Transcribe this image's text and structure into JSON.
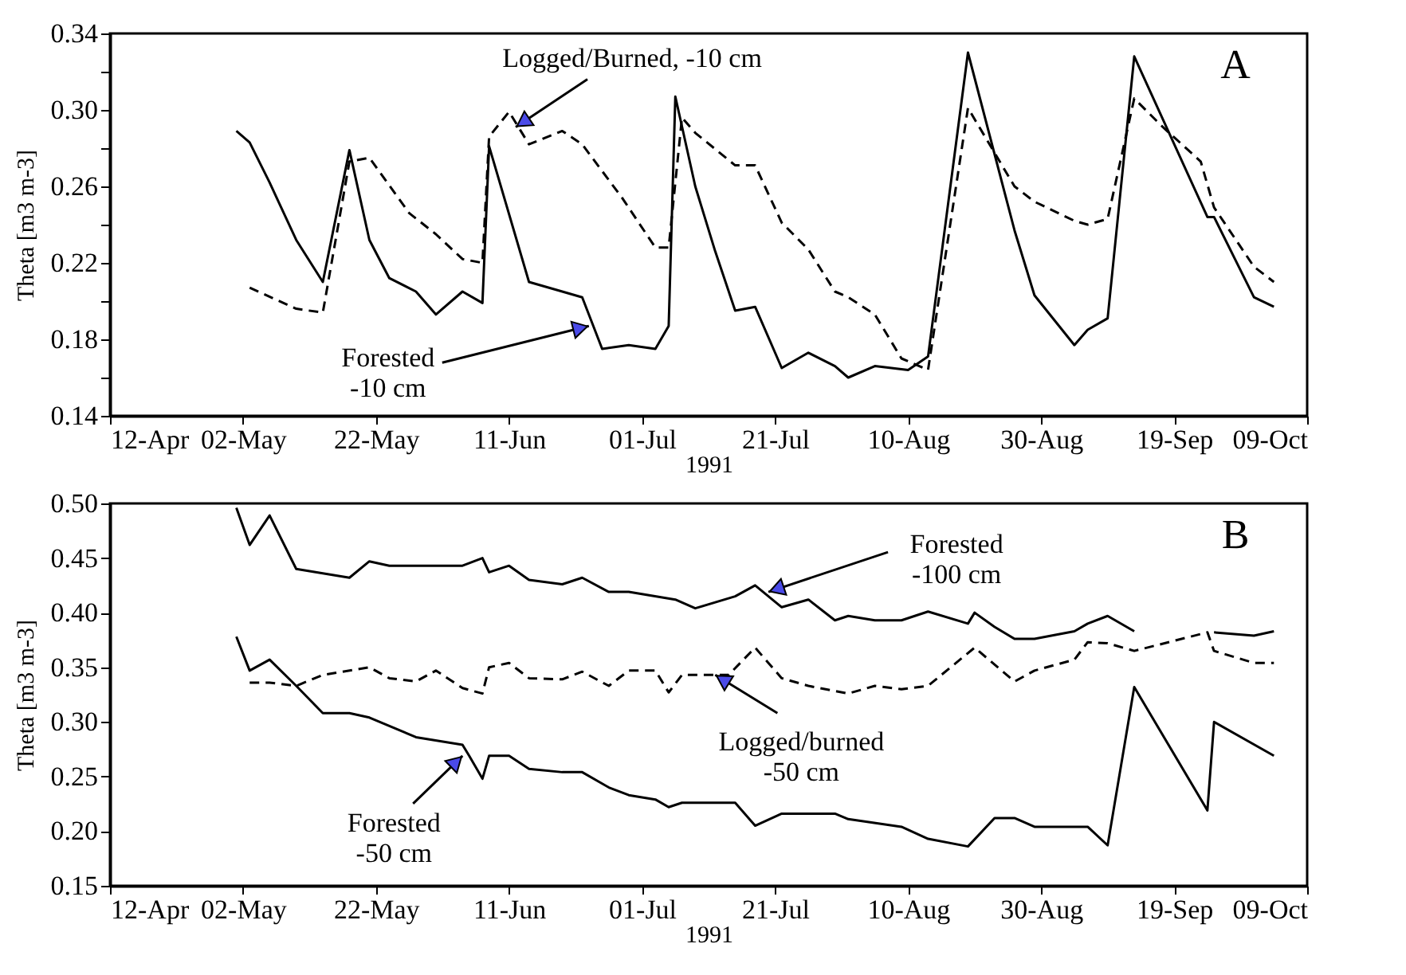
{
  "chart_data": [
    {
      "type": "line",
      "xlabel": "1991",
      "ylabel": "Theta [m3 m-3]",
      "xlim": [
        "1991-04-12",
        "1991-10-09"
      ],
      "xticks": [
        {
          "value": "1991-04-12",
          "label": "12-Apr"
        },
        {
          "value": "1991-05-02",
          "label": "02-May"
        },
        {
          "value": "1991-05-22",
          "label": "22-May"
        },
        {
          "value": "1991-06-11",
          "label": "11-Jun"
        },
        {
          "value": "1991-07-01",
          "label": "01-Jul"
        },
        {
          "value": "1991-07-21",
          "label": "21-Jul"
        },
        {
          "value": "1991-08-10",
          "label": "10-Aug"
        },
        {
          "value": "1991-08-30",
          "label": "30-Aug"
        },
        {
          "value": "1991-09-19",
          "label": "19-Sep"
        },
        {
          "value": "1991-10-09",
          "label": "09-Oct"
        }
      ],
      "ylim": [
        0.14,
        0.34
      ],
      "yticks": [
        {
          "value": 0.14,
          "label": "0.14"
        },
        {
          "value": 0.16,
          "label": null
        },
        {
          "value": 0.18,
          "label": "0.18"
        },
        {
          "value": 0.2,
          "label": null
        },
        {
          "value": 0.22,
          "label": "0.22"
        },
        {
          "value": 0.24,
          "label": null
        },
        {
          "value": 0.26,
          "label": "0.26"
        },
        {
          "value": 0.28,
          "label": null
        },
        {
          "value": 0.3,
          "label": "0.30"
        },
        {
          "value": 0.32,
          "label": null
        },
        {
          "value": 0.34,
          "label": "0.34"
        }
      ],
      "annotations": [
        {
          "text": "Logged/Burned, -10 cm",
          "x": "1991-06-12",
          "y": 0.291
        },
        {
          "text": "Forested\n-10 cm",
          "x": "1991-06-23",
          "y": 0.187
        },
        "A"
      ],
      "series": [
        {
          "color": "#000000",
          "line_style": "solid",
          "x": [
            "1991-05-01",
            "1991-05-03",
            "1991-05-06",
            "1991-05-10",
            "1991-05-14",
            "1991-05-18",
            "1991-05-21",
            "1991-05-24",
            "1991-05-28",
            "1991-05-31",
            "1991-06-04",
            "1991-06-07",
            "1991-06-08",
            "1991-06-14",
            "1991-06-19",
            "1991-06-22",
            "1991-06-25",
            "1991-06-29",
            "1991-07-03",
            "1991-07-05",
            "1991-07-06",
            "1991-07-09",
            "1991-07-12",
            "1991-07-15",
            "1991-07-18",
            "1991-07-22",
            "1991-07-26",
            "1991-07-30",
            "1991-08-01",
            "1991-08-05",
            "1991-08-10",
            "1991-08-13",
            "1991-08-19",
            "1991-08-26",
            "1991-08-29",
            "1991-09-04",
            "1991-09-06",
            "1991-09-09",
            "1991-09-13",
            "1991-09-24",
            "1991-09-25",
            "1991-10-01",
            "1991-10-04"
          ],
          "values": [
            0.289,
            0.283,
            0.262,
            0.232,
            0.21,
            0.279,
            0.232,
            0.212,
            0.205,
            0.193,
            0.205,
            0.199,
            0.281,
            0.21,
            0.205,
            0.202,
            0.175,
            0.177,
            0.175,
            0.187,
            0.307,
            0.26,
            0.226,
            0.195,
            0.197,
            0.165,
            0.173,
            0.166,
            0.16,
            0.166,
            0.164,
            0.171,
            0.33,
            0.237,
            0.203,
            0.177,
            0.185,
            0.191,
            0.328,
            0.244,
            0.244,
            0.202,
            0.197
          ]
        },
        {
          "color": "#000000",
          "line_style": "dashed",
          "x": [
            "1991-05-03",
            "1991-05-10",
            "1991-05-14",
            "1991-05-18",
            "1991-05-21",
            "1991-05-27",
            "1991-05-31",
            "1991-06-04",
            "1991-06-07",
            "1991-06-08",
            "1991-06-11",
            "1991-06-14",
            "1991-06-19",
            "1991-06-22",
            "1991-06-28",
            "1991-07-03",
            "1991-07-05",
            "1991-07-07",
            "1991-07-09",
            "1991-07-15",
            "1991-07-18",
            "1991-07-22",
            "1991-07-26",
            "1991-07-30",
            "1991-08-01",
            "1991-08-05",
            "1991-08-09",
            "1991-08-13",
            "1991-08-19",
            "1991-08-26",
            "1991-08-29",
            "1991-09-04",
            "1991-09-06",
            "1991-09-09",
            "1991-09-13",
            "1991-09-17",
            "1991-09-23",
            "1991-09-25",
            "1991-10-01",
            "1991-10-04"
          ],
          "values": [
            0.207,
            0.196,
            0.194,
            0.273,
            0.275,
            0.246,
            0.235,
            0.222,
            0.22,
            0.286,
            0.299,
            0.282,
            0.289,
            0.282,
            0.254,
            0.228,
            0.228,
            0.296,
            0.288,
            0.271,
            0.271,
            0.241,
            0.227,
            0.205,
            0.202,
            0.193,
            0.17,
            0.164,
            0.301,
            0.26,
            0.252,
            0.242,
            0.24,
            0.243,
            0.306,
            0.292,
            0.273,
            0.249,
            0.218,
            0.21
          ]
        }
      ]
    },
    {
      "type": "line",
      "xlabel": "1991",
      "ylabel": "Theta [m3 m-3]",
      "xlim": [
        "1991-04-12",
        "1991-10-09"
      ],
      "xticks": [
        {
          "value": "1991-04-12",
          "label": "12-Apr"
        },
        {
          "value": "1991-05-02",
          "label": "02-May"
        },
        {
          "value": "1991-05-22",
          "label": "22-May"
        },
        {
          "value": "1991-06-11",
          "label": "11-Jun"
        },
        {
          "value": "1991-07-01",
          "label": "01-Jul"
        },
        {
          "value": "1991-07-21",
          "label": "21-Jul"
        },
        {
          "value": "1991-08-10",
          "label": "10-Aug"
        },
        {
          "value": "1991-08-30",
          "label": "30-Aug"
        },
        {
          "value": "1991-09-19",
          "label": "19-Sep"
        },
        {
          "value": "1991-10-09",
          "label": "09-Oct"
        }
      ],
      "ylim": [
        0.15,
        0.5
      ],
      "yticks": [
        {
          "value": 0.15,
          "label": "0.15"
        },
        {
          "value": 0.2,
          "label": "0.20"
        },
        {
          "value": 0.25,
          "label": "0.25"
        },
        {
          "value": 0.3,
          "label": "0.30"
        },
        {
          "value": 0.35,
          "label": "0.35"
        },
        {
          "value": 0.4,
          "label": "0.40"
        },
        {
          "value": 0.45,
          "label": "0.45"
        },
        {
          "value": 0.5,
          "label": "0.50"
        }
      ],
      "annotations": [
        {
          "text": "Forested\n-100 cm",
          "x": "1991-07-20",
          "y": 0.419
        },
        {
          "text": "Logged/burned\n-50 cm",
          "x": "1991-07-12",
          "y": 0.343
        },
        {
          "text": "Forested\n-50 cm",
          "x": "1991-06-04",
          "y": 0.269
        },
        "B"
      ],
      "series": [
        {
          "color": "#000000",
          "line_style": "solid",
          "x": [
            "1991-05-01",
            "1991-05-03",
            "1991-05-06",
            "1991-05-10",
            "1991-05-18",
            "1991-05-21",
            "1991-05-24",
            "1991-06-04",
            "1991-06-07",
            "1991-06-08",
            "1991-06-11",
            "1991-06-14",
            "1991-06-19",
            "1991-06-22",
            "1991-06-26",
            "1991-06-29",
            "1991-07-06",
            "1991-07-09",
            "1991-07-15",
            "1991-07-18",
            "1991-07-22",
            "1991-07-26",
            "1991-07-30",
            "1991-08-01",
            "1991-08-05",
            "1991-08-09",
            "1991-08-13",
            "1991-08-19",
            "1991-08-20",
            "1991-08-23",
            "1991-08-26",
            "1991-08-29",
            "1991-09-04",
            "1991-09-06",
            "1991-09-09",
            "1991-09-13",
            "1991-09-19",
            "1991-09-25",
            "1991-10-01",
            "1991-10-04"
          ],
          "values": [
            0.496,
            0.462,
            0.489,
            0.44,
            0.432,
            0.447,
            0.443,
            0.443,
            0.45,
            0.437,
            0.443,
            0.43,
            0.426,
            0.432,
            0.419,
            0.419,
            0.412,
            0.404,
            0.415,
            0.425,
            0.405,
            0.412,
            0.393,
            0.397,
            0.393,
            0.393,
            0.401,
            0.39,
            0.4,
            0.387,
            0.376,
            0.376,
            0.383,
            0.39,
            0.397,
            0.383,
            null,
            0.382,
            0.379,
            0.383
          ]
        },
        {
          "color": "#000000",
          "line_style": "dashed",
          "x": [
            "1991-05-03",
            "1991-05-06",
            "1991-05-10",
            "1991-05-14",
            "1991-05-21",
            "1991-05-24",
            "1991-05-28",
            "1991-05-31",
            "1991-06-04",
            "1991-06-07",
            "1991-06-08",
            "1991-06-11",
            "1991-06-14",
            "1991-06-19",
            "1991-06-22",
            "1991-06-26",
            "1991-06-29",
            "1991-07-03",
            "1991-07-05",
            "1991-07-07",
            "1991-07-14",
            "1991-07-18",
            "1991-07-22",
            "1991-07-26",
            "1991-08-01",
            "1991-08-05",
            "1991-08-09",
            "1991-08-13",
            "1991-08-20",
            "1991-08-26",
            "1991-08-29",
            "1991-09-04",
            "1991-09-06",
            "1991-09-09",
            "1991-09-13",
            "1991-09-24",
            "1991-09-25",
            "1991-10-01",
            "1991-10-04"
          ],
          "values": [
            0.336,
            0.336,
            0.333,
            0.343,
            0.35,
            0.34,
            0.337,
            0.347,
            0.331,
            0.326,
            0.35,
            0.354,
            0.34,
            0.339,
            0.346,
            0.333,
            0.347,
            0.347,
            0.327,
            0.343,
            0.343,
            0.368,
            0.34,
            0.333,
            0.326,
            0.333,
            0.33,
            0.333,
            0.368,
            0.337,
            0.347,
            0.357,
            0.373,
            0.372,
            0.365,
            0.382,
            0.365,
            0.354,
            0.354
          ]
        },
        {
          "color": "#000000",
          "line_style": "solid",
          "x": [
            "1991-05-01",
            "1991-05-03",
            "1991-05-06",
            "1991-05-10",
            "1991-05-14",
            "1991-05-18",
            "1991-05-21",
            "1991-05-28",
            "1991-06-04",
            "1991-06-05",
            "1991-06-07",
            "1991-06-08",
            "1991-06-11",
            "1991-06-14",
            "1991-06-19",
            "1991-06-22",
            "1991-06-26",
            "1991-06-29",
            "1991-07-03",
            "1991-07-05",
            "1991-07-07",
            "1991-07-15",
            "1991-07-18",
            "1991-07-22",
            "1991-07-30",
            "1991-08-01",
            "1991-08-09",
            "1991-08-13",
            "1991-08-19",
            "1991-08-23",
            "1991-08-26",
            "1991-08-29",
            "1991-09-06",
            "1991-09-09",
            "1991-09-13",
            "1991-09-24",
            "1991-09-25",
            "1991-10-04"
          ],
          "values": [
            0.378,
            0.347,
            0.357,
            0.333,
            0.308,
            0.308,
            0.304,
            0.286,
            0.279,
            0.269,
            0.248,
            0.269,
            0.269,
            0.257,
            0.254,
            0.254,
            0.24,
            0.233,
            0.229,
            0.222,
            0.226,
            0.226,
            0.205,
            0.216,
            0.216,
            0.211,
            0.204,
            0.193,
            0.186,
            0.212,
            0.212,
            0.204,
            0.204,
            0.187,
            0.332,
            0.219,
            0.3,
            0.269
          ]
        }
      ]
    }
  ]
}
